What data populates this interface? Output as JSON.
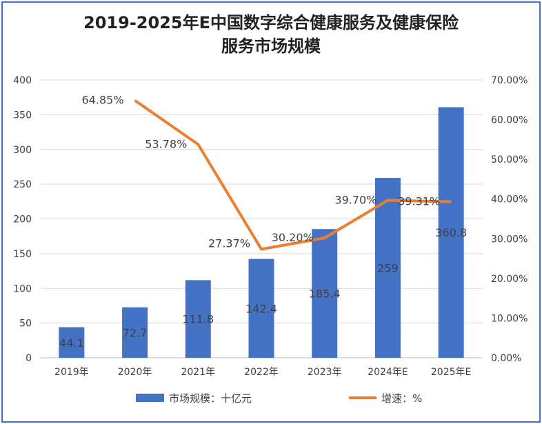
{
  "chart_data": {
    "type": "bar+line",
    "title_line1": "2019-2025年E中国数字综合健康服务及健康保险",
    "title_line2": "服务市场规模",
    "categories": [
      "2019年",
      "2020年",
      "2021年",
      "2022年",
      "2023年",
      "2024年E",
      "2025年E"
    ],
    "series": [
      {
        "name": "市场规模：十亿元",
        "type": "bar",
        "axis": "left",
        "color": "#4472C4",
        "values": [
          44.1,
          72.7,
          111.8,
          142.4,
          185.4,
          259,
          360.8
        ],
        "labels": [
          "44.1",
          "72.7",
          "111.8",
          "142.4",
          "185.4",
          "259",
          "360.8"
        ]
      },
      {
        "name": "增速：%",
        "type": "line",
        "axis": "right",
        "color": "#ED7D31",
        "values": [
          null,
          64.85,
          53.78,
          27.37,
          30.2,
          39.7,
          39.31
        ],
        "labels": [
          "",
          "64.85%",
          "53.78%",
          "27.37%",
          "30.20%",
          "39.70%",
          "39.31%"
        ]
      }
    ],
    "left_axis": {
      "ylim": [
        0,
        400
      ],
      "ticks": [
        "0",
        "50",
        "100",
        "150",
        "200",
        "250",
        "300",
        "350",
        "400"
      ]
    },
    "right_axis": {
      "ylim": [
        0,
        70
      ],
      "ticks": [
        "0.00%",
        "10.00%",
        "20.00%",
        "30.00%",
        "40.00%",
        "50.00%",
        "60.00%",
        "70.00%"
      ]
    },
    "grid": true,
    "legend": "bottom"
  }
}
